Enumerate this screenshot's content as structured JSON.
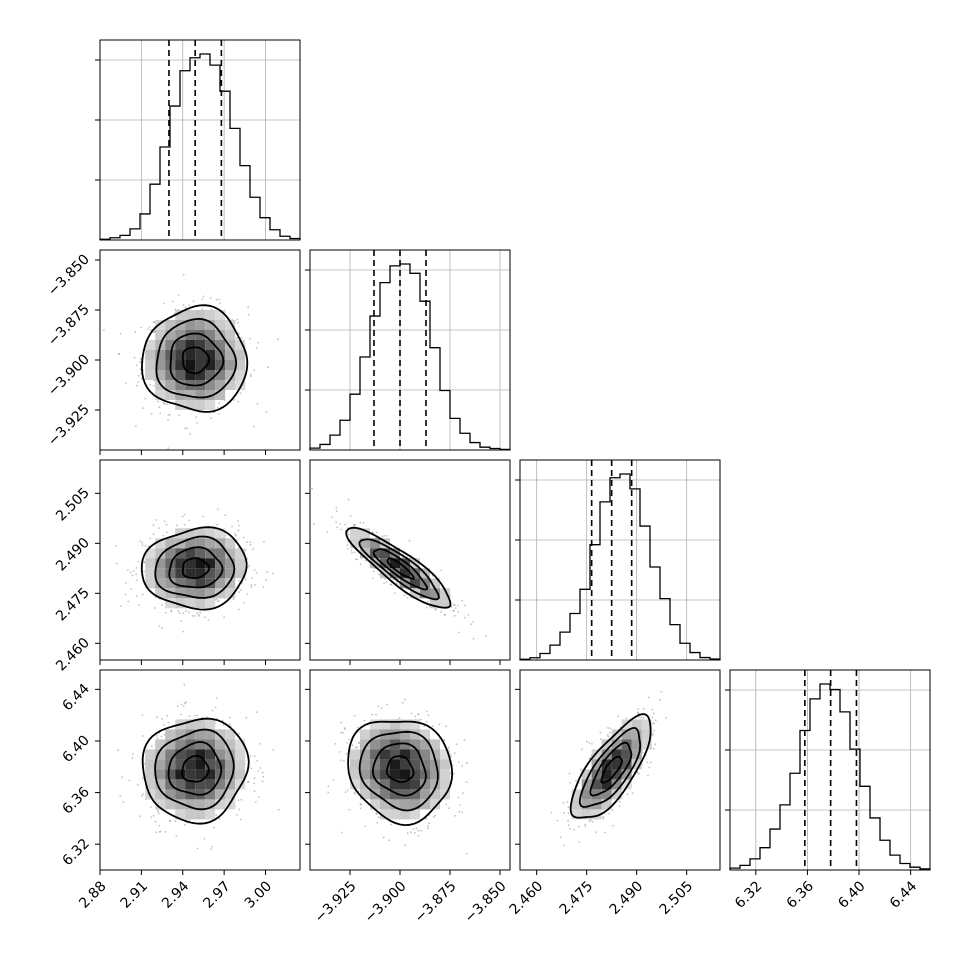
{
  "chart_data": {
    "type": "corner",
    "parameters": [
      {
        "range": [
          2.88,
          3.025
        ],
        "ticks": [
          "2.88",
          "2.91",
          "2.94",
          "2.97",
          "3.00"
        ],
        "median": 2.949,
        "q16": 2.93,
        "q84": 2.968,
        "hist": [
          0.004,
          0.012,
          0.025,
          0.06,
          0.14,
          0.3,
          0.5,
          0.72,
          0.91,
          0.98,
          1.0,
          0.94,
          0.8,
          0.6,
          0.4,
          0.23,
          0.12,
          0.055,
          0.02,
          0.008
        ]
      },
      {
        "range": [
          -3.945,
          -3.845
        ],
        "ticks": [
          "−3.925",
          "−3.900",
          "−3.875",
          "−3.850"
        ],
        "tick_values": [
          -3.925,
          -3.9,
          -3.875,
          -3.85
        ],
        "median": -3.9,
        "q16": -3.913,
        "q84": -3.887,
        "hist": [
          0.01,
          0.03,
          0.08,
          0.16,
          0.3,
          0.5,
          0.72,
          0.9,
          0.99,
          1.0,
          0.95,
          0.8,
          0.55,
          0.32,
          0.17,
          0.09,
          0.04,
          0.015,
          0.008,
          0.003
        ]
      },
      {
        "range": [
          2.455,
          2.515
        ],
        "ticks": [
          "2.460",
          "2.475",
          "2.490",
          "2.505"
        ],
        "median": 2.4825,
        "q16": 2.4765,
        "q84": 2.4885,
        "hist": [
          0.004,
          0.012,
          0.035,
          0.08,
          0.15,
          0.25,
          0.38,
          0.62,
          0.85,
          0.98,
          1.0,
          0.92,
          0.72,
          0.5,
          0.33,
          0.19,
          0.09,
          0.04,
          0.013,
          0.005
        ]
      },
      {
        "range": [
          6.3,
          6.455
        ],
        "ticks": [
          "6.32",
          "6.36",
          "6.40",
          "6.44"
        ],
        "median": 6.378,
        "q16": 6.358,
        "q84": 6.398,
        "hist": [
          0.01,
          0.025,
          0.06,
          0.12,
          0.22,
          0.35,
          0.52,
          0.75,
          0.92,
          1.0,
          0.97,
          0.85,
          0.65,
          0.45,
          0.28,
          0.16,
          0.08,
          0.035,
          0.015,
          0.006
        ]
      }
    ],
    "pairs": [
      {
        "row": 1,
        "col": 0,
        "mean": [
          2.949,
          -3.9
        ],
        "sd": [
          0.019,
          0.013
        ],
        "rho": 0.0
      },
      {
        "row": 2,
        "col": 0,
        "mean": [
          2.949,
          2.4825
        ],
        "sd": [
          0.019,
          0.006
        ],
        "rho": 0.05
      },
      {
        "row": 2,
        "col": 1,
        "mean": [
          -3.9,
          2.4825
        ],
        "sd": [
          0.013,
          0.006
        ],
        "rho": -0.88
      },
      {
        "row": 3,
        "col": 0,
        "mean": [
          2.949,
          6.378
        ],
        "sd": [
          0.019,
          0.02
        ],
        "rho": 0.05
      },
      {
        "row": 3,
        "col": 1,
        "mean": [
          -3.9,
          6.378
        ],
        "sd": [
          0.013,
          0.02
        ],
        "rho": -0.1
      },
      {
        "row": 3,
        "col": 2,
        "mean": [
          2.4825,
          6.378
        ],
        "sd": [
          0.006,
          0.02
        ],
        "rho": 0.75
      }
    ],
    "contour_levels_sigma": [
      0.5,
      1.0,
      1.5,
      2.0
    ],
    "grid": true
  }
}
